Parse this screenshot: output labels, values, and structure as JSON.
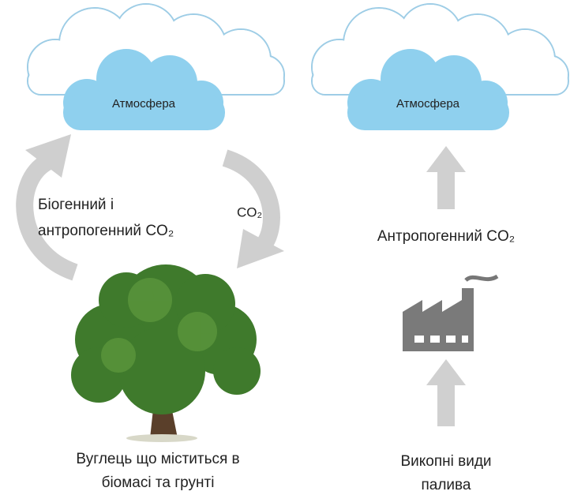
{
  "left": {
    "cloud_label": "Атмосфера",
    "cycle_label": [
      "Біогенний і",
      "антропогенний CO₂"
    ],
    "co2_label": "CO₂",
    "source_label": [
      "Вуглець що міститься в",
      "біомасі та грунті"
    ]
  },
  "right": {
    "cloud_label": "Атмосфера",
    "emission_label": "Антропогенний CO₂",
    "source_label": [
      "Викопні види",
      "палива"
    ]
  }
}
